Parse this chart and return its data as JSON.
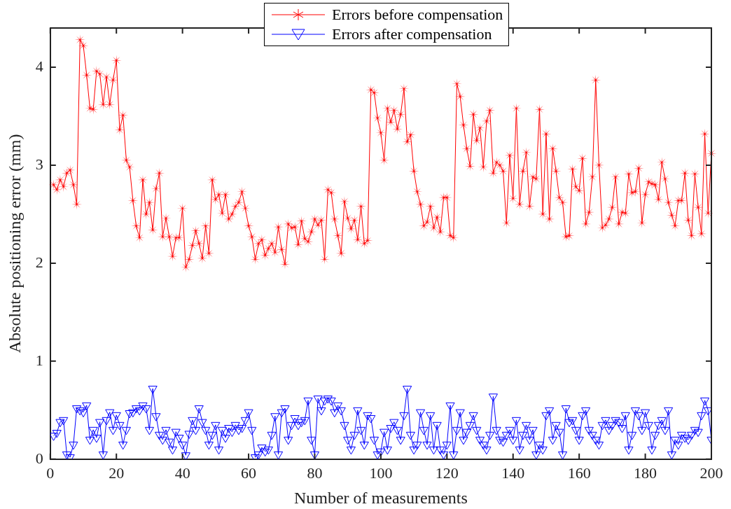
{
  "chart_data": {
    "type": "line",
    "xlabel": "Number of measurements",
    "ylabel": "Absolute positioning error (mm)",
    "x": [
      1,
      2,
      3,
      4,
      5,
      6,
      7,
      8,
      9,
      10,
      11,
      12,
      13,
      14,
      15,
      16,
      17,
      18,
      19,
      20,
      21,
      22,
      23,
      24,
      25,
      26,
      27,
      28,
      29,
      30,
      31,
      32,
      33,
      34,
      35,
      36,
      37,
      38,
      39,
      40,
      41,
      42,
      43,
      44,
      45,
      46,
      47,
      48,
      49,
      50,
      51,
      52,
      53,
      54,
      55,
      56,
      57,
      58,
      59,
      60,
      61,
      62,
      63,
      64,
      65,
      66,
      67,
      68,
      69,
      70,
      71,
      72,
      73,
      74,
      75,
      76,
      77,
      78,
      79,
      80,
      81,
      82,
      83,
      84,
      85,
      86,
      87,
      88,
      89,
      90,
      91,
      92,
      93,
      94,
      95,
      96,
      97,
      98,
      99,
      100,
      101,
      102,
      103,
      104,
      105,
      106,
      107,
      108,
      109,
      110,
      111,
      112,
      113,
      114,
      115,
      116,
      117,
      118,
      119,
      120,
      121,
      122,
      123,
      124,
      125,
      126,
      127,
      128,
      129,
      130,
      131,
      132,
      133,
      134,
      135,
      136,
      137,
      138,
      139,
      140,
      141,
      142,
      143,
      144,
      145,
      146,
      147,
      148,
      149,
      150,
      151,
      152,
      153,
      154,
      155,
      156,
      157,
      158,
      159,
      160,
      161,
      162,
      163,
      164,
      165,
      166,
      167,
      168,
      169,
      170,
      171,
      172,
      173,
      174,
      175,
      176,
      177,
      178,
      179,
      180,
      181,
      182,
      183,
      184,
      185,
      186,
      187,
      188,
      189,
      190,
      191,
      192,
      193,
      194,
      195,
      196,
      197,
      198,
      199,
      200
    ],
    "series": [
      {
        "name": "Errors before compensation",
        "color": "#ff0000",
        "marker": "star",
        "values": [
          2.8,
          2.75,
          2.85,
          2.78,
          2.92,
          2.95,
          2.8,
          2.6,
          4.28,
          4.22,
          3.92,
          3.58,
          3.57,
          3.96,
          3.93,
          3.62,
          3.9,
          3.62,
          3.87,
          4.07,
          3.36,
          3.51,
          3.05,
          2.98,
          2.64,
          2.38,
          2.26,
          2.85,
          2.5,
          2.62,
          2.34,
          2.76,
          2.92,
          2.27,
          2.46,
          2.27,
          2.07,
          2.26,
          2.26,
          2.56,
          1.96,
          2.04,
          2.18,
          2.33,
          2.2,
          2.05,
          2.38,
          2.1,
          2.85,
          2.65,
          2.7,
          2.51,
          2.7,
          2.45,
          2.5,
          2.58,
          2.62,
          2.73,
          2.56,
          2.38,
          2.27,
          2.04,
          2.2,
          2.24,
          2.08,
          2.15,
          2.2,
          2.11,
          2.37,
          2.14,
          1.99,
          2.4,
          2.36,
          2.37,
          2.19,
          2.43,
          2.25,
          2.22,
          2.32,
          2.45,
          2.39,
          2.44,
          2.04,
          2.75,
          2.72,
          2.45,
          2.28,
          2.1,
          2.63,
          2.46,
          2.35,
          2.44,
          2.24,
          2.58,
          2.2,
          2.23,
          3.77,
          3.74,
          3.48,
          3.33,
          3.05,
          3.58,
          3.44,
          3.56,
          3.37,
          3.52,
          3.78,
          3.24,
          3.31,
          2.94,
          2.73,
          2.6,
          2.38,
          2.42,
          2.58,
          2.36,
          2.47,
          2.32,
          2.67,
          2.67,
          2.28,
          2.26,
          3.83,
          3.7,
          3.41,
          3.17,
          2.99,
          3.52,
          3.25,
          3.38,
          2.98,
          3.45,
          3.56,
          2.92,
          3.03,
          3.0,
          2.94,
          2.41,
          3.1,
          2.66,
          3.58,
          2.6,
          2.94,
          3.13,
          2.58,
          2.88,
          2.86,
          3.57,
          2.5,
          3.32,
          2.45,
          3.17,
          2.94,
          2.67,
          2.62,
          2.27,
          2.28,
          2.96,
          2.78,
          2.74,
          3.07,
          2.4,
          2.52,
          2.88,
          3.87,
          3.0,
          2.36,
          2.39,
          2.45,
          2.57,
          2.88,
          2.4,
          2.52,
          2.51,
          2.91,
          2.72,
          2.73,
          2.97,
          2.41,
          2.7,
          2.83,
          2.81,
          2.8,
          2.65,
          3.03,
          2.86,
          2.62,
          2.49,
          2.38,
          2.64,
          2.64,
          2.92,
          2.44,
          2.28,
          2.91,
          2.57,
          2.3,
          3.32,
          2.51,
          3.12
        ]
      },
      {
        "name": "Errors after compensation",
        "color": "#0000ff",
        "marker": "triangle",
        "values": [
          0.24,
          0.27,
          0.38,
          0.4,
          0.05,
          0.02,
          0.15,
          0.52,
          0.5,
          0.48,
          0.55,
          0.2,
          0.3,
          0.22,
          0.38,
          0.05,
          0.4,
          0.48,
          0.3,
          0.45,
          0.35,
          0.15,
          0.3,
          0.47,
          0.48,
          0.52,
          0.5,
          0.55,
          0.52,
          0.3,
          0.72,
          0.44,
          0.25,
          0.2,
          0.3,
          0.18,
          0.1,
          0.28,
          0.22,
          0.15,
          0.04,
          0.26,
          0.4,
          0.3,
          0.52,
          0.38,
          0.3,
          0.15,
          0.25,
          0.35,
          0.1,
          0.3,
          0.22,
          0.32,
          0.28,
          0.35,
          0.3,
          0.32,
          0.4,
          0.48,
          0.3,
          0.02,
          0.05,
          0.12,
          0.08,
          0.1,
          0.25,
          0.44,
          0.05,
          0.48,
          0.52,
          0.2,
          0.35,
          0.42,
          0.35,
          0.38,
          0.4,
          0.6,
          0.2,
          0.05,
          0.62,
          0.5,
          0.6,
          0.62,
          0.6,
          0.48,
          0.55,
          0.5,
          0.35,
          0.2,
          0.1,
          0.25,
          0.5,
          0.3,
          0.15,
          0.45,
          0.42,
          0.2,
          0.05,
          0.08,
          0.28,
          0.1,
          0.32,
          0.38,
          0.3,
          0.2,
          0.45,
          0.72,
          0.25,
          0.1,
          0.15,
          0.48,
          0.3,
          0.15,
          0.45,
          0.1,
          0.35,
          0.1,
          0.05,
          0.15,
          0.55,
          0.05,
          0.3,
          0.48,
          0.2,
          0.28,
          0.35,
          0.45,
          0.3,
          0.2,
          0.15,
          0.1,
          0.25,
          0.64,
          0.3,
          0.2,
          0.18,
          0.25,
          0.3,
          0.2,
          0.4,
          0.1,
          0.25,
          0.35,
          0.2,
          0.3,
          0.05,
          0.15,
          0.1,
          0.45,
          0.5,
          0.2,
          0.35,
          0.28,
          0.05,
          0.52,
          0.38,
          0.4,
          0.3,
          0.2,
          0.45,
          0.5,
          0.3,
          0.25,
          0.2,
          0.15,
          0.35,
          0.4,
          0.3,
          0.35,
          0.4,
          0.38,
          0.32,
          0.45,
          0.1,
          0.25,
          0.5,
          0.45,
          0.3,
          0.48,
          0.35,
          0.1,
          0.25,
          0.35,
          0.4,
          0.3,
          0.5,
          0.05,
          0.2,
          0.15,
          0.25,
          0.22,
          0.2,
          0.25,
          0.3,
          0.28,
          0.45,
          0.6,
          0.5,
          0.2
        ]
      }
    ],
    "xlim": [
      0,
      200
    ],
    "xticks": [
      0,
      20,
      40,
      60,
      80,
      100,
      120,
      140,
      160,
      180,
      200
    ],
    "ylim": [
      0,
      4.4
    ],
    "yticks": [
      0,
      1,
      2,
      3,
      4
    ],
    "grid": false,
    "legend": "top",
    "line_style": "solid"
  }
}
